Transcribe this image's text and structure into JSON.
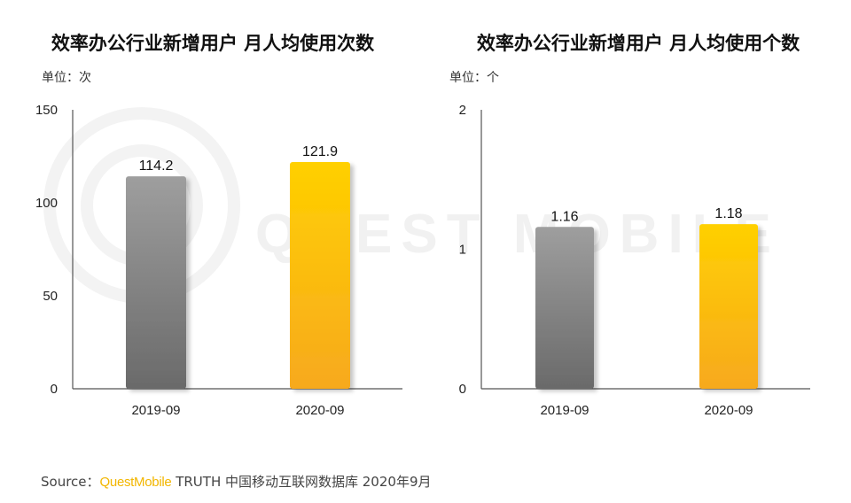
{
  "watermark": "QUEST MOBILE",
  "chart_data": [
    {
      "type": "bar",
      "title": "效率办公行业新增用户 月人均使用次数",
      "unit_label": "单位：次",
      "categories": [
        "2019-09",
        "2020-09"
      ],
      "values": [
        114.2,
        121.9
      ],
      "value_labels": [
        "114.2",
        "121.9"
      ],
      "ylim": [
        0,
        150
      ],
      "yticks": [
        0,
        50,
        100,
        150
      ],
      "ytick_labels": [
        "0",
        "50",
        "100",
        "150"
      ],
      "bar_colors": [
        "gray",
        "gold"
      ],
      "xlabel": "",
      "ylabel": ""
    },
    {
      "type": "bar",
      "title": "效率办公行业新增用户 月人均使用个数",
      "unit_label": "单位：个",
      "categories": [
        "2019-09",
        "2020-09"
      ],
      "values": [
        1.16,
        1.18
      ],
      "value_labels": [
        "1.16",
        "1.18"
      ],
      "ylim": [
        0,
        2
      ],
      "yticks": [
        0,
        1,
        2
      ],
      "ytick_labels": [
        "0",
        "1",
        "2"
      ],
      "bar_colors": [
        "gray",
        "gold"
      ],
      "xlabel": "",
      "ylabel": ""
    }
  ],
  "source": {
    "prefix": "Source：",
    "brand": "QuestMobile",
    "suffix": " TRUTH 中国移动互联网数据库 2020年9月"
  },
  "colors": {
    "gray_top": "#9e9e9e",
    "gray_bottom": "#6a6a6a",
    "gold_top": "#ffd000",
    "gold_bottom": "#f7a91e"
  }
}
